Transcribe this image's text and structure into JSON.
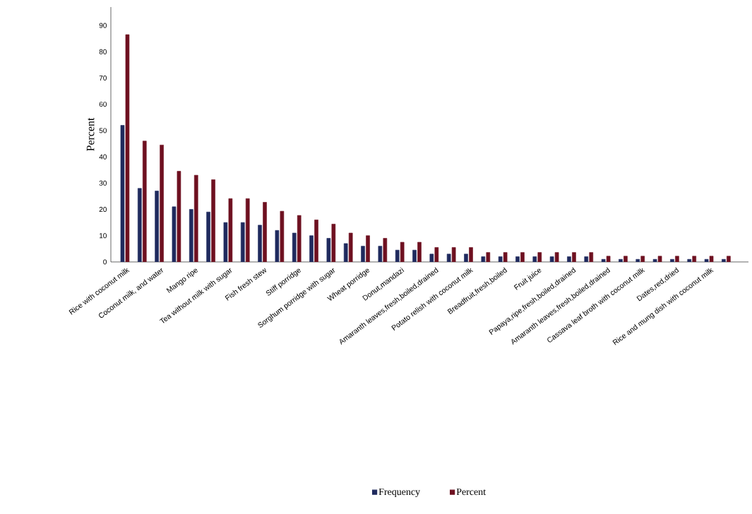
{
  "chart_data": {
    "type": "bar",
    "ylabel": "Percent",
    "categories": [
      "Rice with coconut milk",
      null,
      "Coconut milk, and water",
      null,
      "Mango ripe",
      null,
      "Tea without milk with sugar",
      null,
      "Fish fresh stew",
      null,
      "Stiff porridge",
      null,
      "Sorghum porridge with sugar",
      null,
      "Wheat porridge",
      null,
      "Donut,mandazi",
      null,
      "Amaranth leaves,fresh,boiled,drained",
      null,
      "Potato relish with coconut milk",
      null,
      "Breadfruit,fresh,boiled",
      null,
      "Fruit juice",
      null,
      "Papaya,ripe,fresh,boiled,drained",
      null,
      "Amaranth leaves,fresh,boiled,drained",
      null,
      "Cassava leaf broth with coconut milk",
      null,
      "Dates,red,dried",
      null,
      "Rice and mung dish with coconut milk",
      null
    ],
    "series": [
      {
        "name": "Frequency",
        "color": "#1f2a5e",
        "values": [
          52,
          28,
          27,
          21,
          20,
          19,
          15,
          15,
          14,
          12,
          11,
          10,
          9,
          7,
          6,
          6,
          4.5,
          4.5,
          3,
          3,
          3,
          2,
          2,
          2,
          2,
          2,
          2,
          2,
          1,
          1,
          1,
          1,
          1,
          1,
          1,
          1
        ]
      },
      {
        "name": "Percent",
        "color": "#6e1020",
        "values": [
          86.5,
          46,
          44.5,
          34.5,
          33,
          31.3,
          24.1,
          24.1,
          22.7,
          19.3,
          17.7,
          16,
          14.4,
          11,
          10,
          9,
          7.5,
          7.5,
          5.5,
          5.5,
          5.5,
          3.6,
          3.6,
          3.6,
          3.6,
          3.6,
          3.6,
          3.6,
          2.2,
          2.2,
          2.2,
          2.2,
          2.2,
          2.2,
          2.2,
          2.2
        ]
      }
    ],
    "ylim": [
      0,
      97
    ],
    "yticks": [
      0,
      10,
      20,
      30,
      40,
      50,
      60,
      70,
      80,
      90
    ],
    "grid": false,
    "legend": "bottom"
  }
}
